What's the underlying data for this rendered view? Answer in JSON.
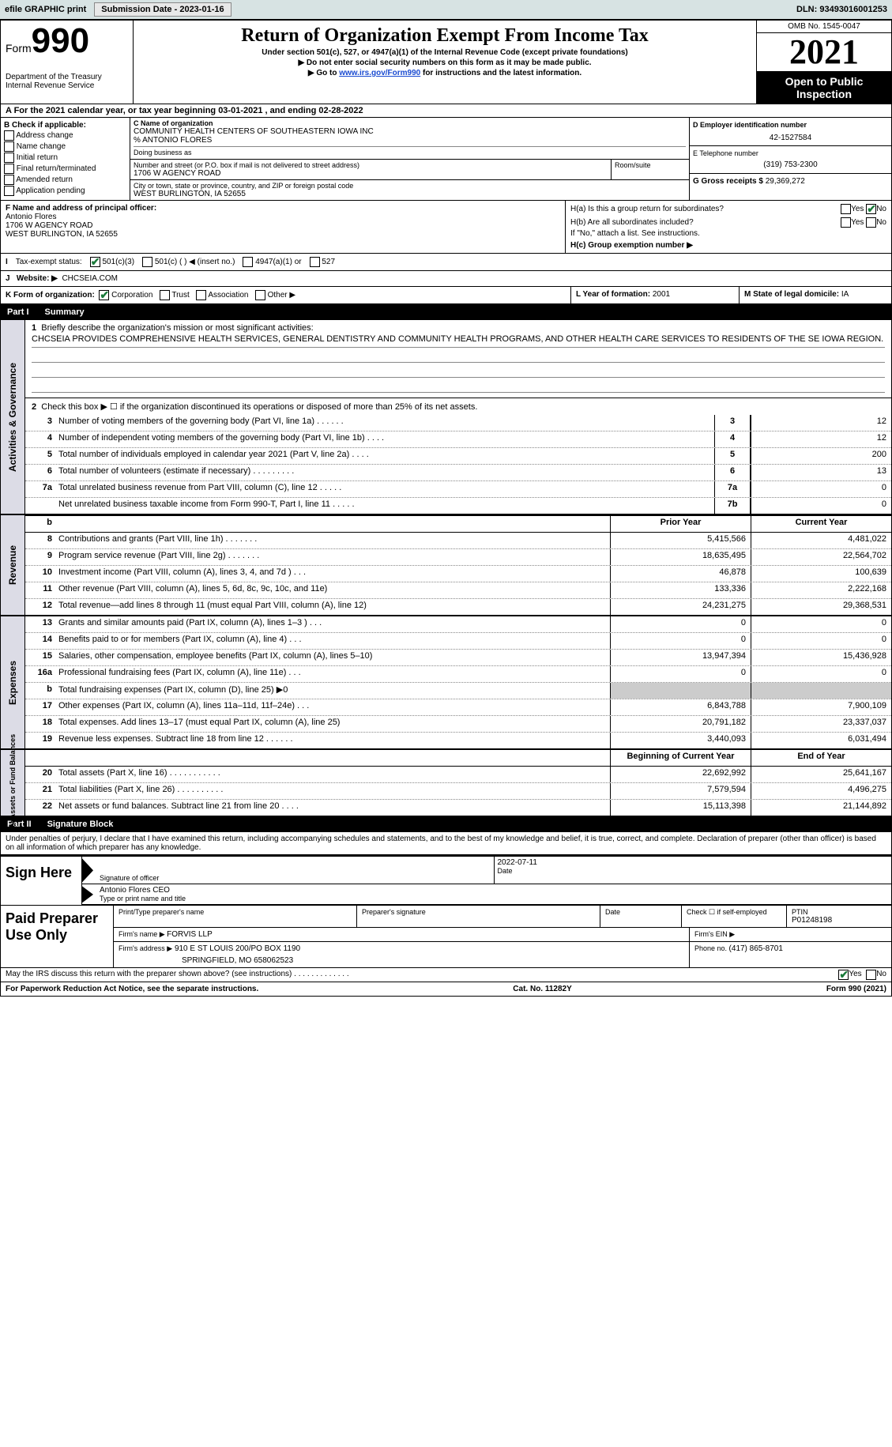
{
  "topbar": {
    "efile": "efile GRAPHIC print",
    "sub_label": "Submission Date - ",
    "sub_date": "2023-01-16",
    "dln": "DLN: 93493016001253"
  },
  "header": {
    "form_label": "Form",
    "form_number": "990",
    "dept": "Department of the Treasury",
    "irs": "Internal Revenue Service",
    "title": "Return of Organization Exempt From Income Tax",
    "sub1": "Under section 501(c), 527, or 4947(a)(1) of the Internal Revenue Code (except private foundations)",
    "sub2": "▶ Do not enter social security numbers on this form as it may be made public.",
    "sub3_pre": "▶ Go to ",
    "sub3_link": "www.irs.gov/Form990",
    "sub3_post": " for instructions and the latest information.",
    "omb": "OMB No. 1545-0047",
    "year": "2021",
    "otp": "Open to Public Inspection"
  },
  "ty": "A For the 2021 calendar year, or tax year beginning 03-01-2021   , and ending 02-28-2022",
  "blockB": {
    "label": "B Check if applicable:",
    "opts": [
      "Address change",
      "Name change",
      "Initial return",
      "Final return/terminated",
      "Amended return",
      "Application pending"
    ],
    "c_label": "C Name of organization",
    "org1": "COMMUNITY HEALTH CENTERS OF SOUTHEASTERN IOWA INC",
    "org2": "% ANTONIO FLORES",
    "dba": "Doing business as",
    "addr_label": "Number and street (or P.O. box if mail is not delivered to street address)",
    "addr": "1706 W AGENCY ROAD",
    "room": "Room/suite",
    "city_label": "City or town, state or province, country, and ZIP or foreign postal code",
    "city": "WEST BURLINGTON, IA  52655",
    "d_label": "D Employer identification number",
    "ein": "42-1527584",
    "e_label": "E Telephone number",
    "phone": "(319) 753-2300",
    "g_label": "G Gross receipts $ ",
    "gross": "29,369,272"
  },
  "blockF": {
    "f_label": "F Name and address of principal officer:",
    "name": "Antonio Flores",
    "addr1": "1706 W AGENCY ROAD",
    "addr2": "WEST BURLINGTON, IA  52655",
    "ha": "H(a)  Is this a group return for subordinates?",
    "yes": "Yes",
    "no": "No",
    "hb": "H(b)  Are all subordinates included?",
    "hb_note": "If \"No,\" attach a list. See instructions.",
    "hc": "H(c)  Group exemption number ▶"
  },
  "taxexempt": {
    "i": "I",
    "label": "Tax-exempt status:",
    "o1": "501(c)(3)",
    "o2": "501(c) (  ) ◀ (insert no.)",
    "o3": "4947(a)(1) or",
    "o4": "527"
  },
  "website": {
    "j": "J",
    "label": "Website: ▶",
    "val": "CHCSEIA.COM"
  },
  "korg": {
    "k": "K Form of organization:",
    "o1": "Corporation",
    "o2": "Trust",
    "o3": "Association",
    "o4": "Other ▶",
    "l": "L Year of formation: ",
    "l_val": "2001",
    "m": "M State of legal domicile: ",
    "m_val": "IA"
  },
  "part1": {
    "label": "Part I",
    "title": "Summary"
  },
  "activities": {
    "label": "Activities & Governance",
    "q1": "Briefly describe the organization's mission or most significant activities:",
    "q1_val": "CHCSEIA PROVIDES COMPREHENSIVE HEALTH SERVICES, GENERAL DENTISTRY AND COMMUNITY HEALTH PROGRAMS, AND OTHER HEALTH CARE SERVICES TO RESIDENTS OF THE SE IOWA REGION.",
    "q2": "Check this box ▶ ☐ if the organization discontinued its operations or disposed of more than 25% of its net assets.",
    "rows": [
      {
        "n": "3",
        "d": "Number of voting members of the governing body (Part VI, line 1a)   .    .    .    .    .    .",
        "b": "3",
        "v": "12"
      },
      {
        "n": "4",
        "d": "Number of independent voting members of the governing body (Part VI, line 1b)   .    .    .    .",
        "b": "4",
        "v": "12"
      },
      {
        "n": "5",
        "d": "Total number of individuals employed in calendar year 2021 (Part V, line 2a)   .    .    .    .",
        "b": "5",
        "v": "200"
      },
      {
        "n": "6",
        "d": "Total number of volunteers (estimate if necessary)    .    .    .    .    .    .    .    .    .",
        "b": "6",
        "v": "13"
      },
      {
        "n": "7a",
        "d": "Total unrelated business revenue from Part VIII, column (C), line 12    .    .    .    .    .",
        "b": "7a",
        "v": "0"
      },
      {
        "n": "",
        "d": "Net unrelated business taxable income from Form 990-T, Part I, line 11   .    .    .    .    .",
        "b": "7b",
        "v": "0"
      }
    ]
  },
  "revenue": {
    "label": "Revenue",
    "hprior": "Prior Year",
    "hcur": "Current Year",
    "rows": [
      {
        "n": "8",
        "d": "Contributions and grants (Part VIII, line 1h)    .    .    .    .    .    .    .",
        "p": "5,415,566",
        "c": "4,481,022"
      },
      {
        "n": "9",
        "d": "Program service revenue (Part VIII, line 2g)    .    .    .    .    .    .    .",
        "p": "18,635,495",
        "c": "22,564,702"
      },
      {
        "n": "10",
        "d": "Investment income (Part VIII, column (A), lines 3, 4, and 7d )    .    .    .",
        "p": "46,878",
        "c": "100,639"
      },
      {
        "n": "11",
        "d": "Other revenue (Part VIII, column (A), lines 5, 6d, 8c, 9c, 10c, and 11e)",
        "p": "133,336",
        "c": "2,222,168"
      },
      {
        "n": "12",
        "d": "Total revenue—add lines 8 through 11 (must equal Part VIII, column (A), line 12)",
        "p": "24,231,275",
        "c": "29,368,531"
      }
    ]
  },
  "expenses": {
    "label": "Expenses",
    "rows": [
      {
        "n": "13",
        "d": "Grants and similar amounts paid (Part IX, column (A), lines 1–3 )    .    .    .",
        "p": "0",
        "c": "0"
      },
      {
        "n": "14",
        "d": "Benefits paid to or for members (Part IX, column (A), line 4)    .    .    .",
        "p": "0",
        "c": "0"
      },
      {
        "n": "15",
        "d": "Salaries, other compensation, employee benefits (Part IX, column (A), lines 5–10)",
        "p": "13,947,394",
        "c": "15,436,928"
      },
      {
        "n": "16a",
        "d": "Professional fundraising fees (Part IX, column (A), line 11e)    .    .    .",
        "p": "0",
        "c": "0"
      },
      {
        "n": "b",
        "d": "Total fundraising expenses (Part IX, column (D), line 25) ▶0",
        "p": "gray",
        "c": "gray"
      },
      {
        "n": "17",
        "d": "Other expenses (Part IX, column (A), lines 11a–11d, 11f–24e)    .    .    .",
        "p": "6,843,788",
        "c": "7,900,109"
      },
      {
        "n": "18",
        "d": "Total expenses. Add lines 13–17 (must equal Part IX, column (A), line 25)",
        "p": "20,791,182",
        "c": "23,337,037"
      },
      {
        "n": "19",
        "d": "Revenue less expenses. Subtract line 18 from line 12    .    .    .    .    .    .",
        "p": "3,440,093",
        "c": "6,031,494"
      }
    ]
  },
  "netassets": {
    "label": "Net Assets or Fund Balances",
    "hbeg": "Beginning of Current Year",
    "hend": "End of Year",
    "rows": [
      {
        "n": "20",
        "d": "Total assets (Part X, line 16)    .    .    .    .    .    .    .    .    .    .    .",
        "p": "22,692,992",
        "c": "25,641,167"
      },
      {
        "n": "21",
        "d": "Total liabilities (Part X, line 26)    .    .    .    .    .    .    .    .    .    .",
        "p": "7,579,594",
        "c": "4,496,275"
      },
      {
        "n": "22",
        "d": "Net assets or fund balances. Subtract line 21 from line 20    .    .    .    .",
        "p": "15,113,398",
        "c": "21,144,892"
      }
    ]
  },
  "part2": {
    "label": "Part II",
    "title": "Signature Block",
    "decl": "Under penalties of perjury, I declare that I have examined this return, including accompanying schedules and statements, and to the best of my knowledge and belief, it is true, correct, and complete. Declaration of preparer (other than officer) is based on all information of which preparer has any knowledge."
  },
  "sign": {
    "here": "Sign Here",
    "sig": "Signature of officer",
    "date": "2022-07-11",
    "name": "Antonio Flores CEO",
    "typed": "Type or print name and title"
  },
  "preparer": {
    "label": "Paid Preparer Use Only",
    "name_label": "Print/Type preparer's name",
    "sig_label": "Preparer's signature",
    "date_label": "Date",
    "check_label": "Check ☐ if self-employed",
    "ptin_label": "PTIN",
    "ptin": "P01248198",
    "firm_name_label": "Firm's name    ▶ ",
    "firm_name": "FORVIS LLP",
    "firm_ein": "Firm's EIN ▶",
    "firm_addr_label": "Firm's address ▶",
    "firm_addr1": "910 E ST LOUIS 200/PO BOX 1190",
    "firm_addr2": "SPRINGFIELD, MO  658062523",
    "phone_label": "Phone no. ",
    "phone": "(417) 865-8701"
  },
  "discuss": "May the IRS discuss this return with the preparer shown above? (see instructions)    .    .    .    .    .    .    .    .    .    .    .    .    .",
  "footer": {
    "left": "For Paperwork Reduction Act Notice, see the separate instructions.",
    "mid": "Cat. No. 11282Y",
    "right": "Form 990 (2021)"
  }
}
